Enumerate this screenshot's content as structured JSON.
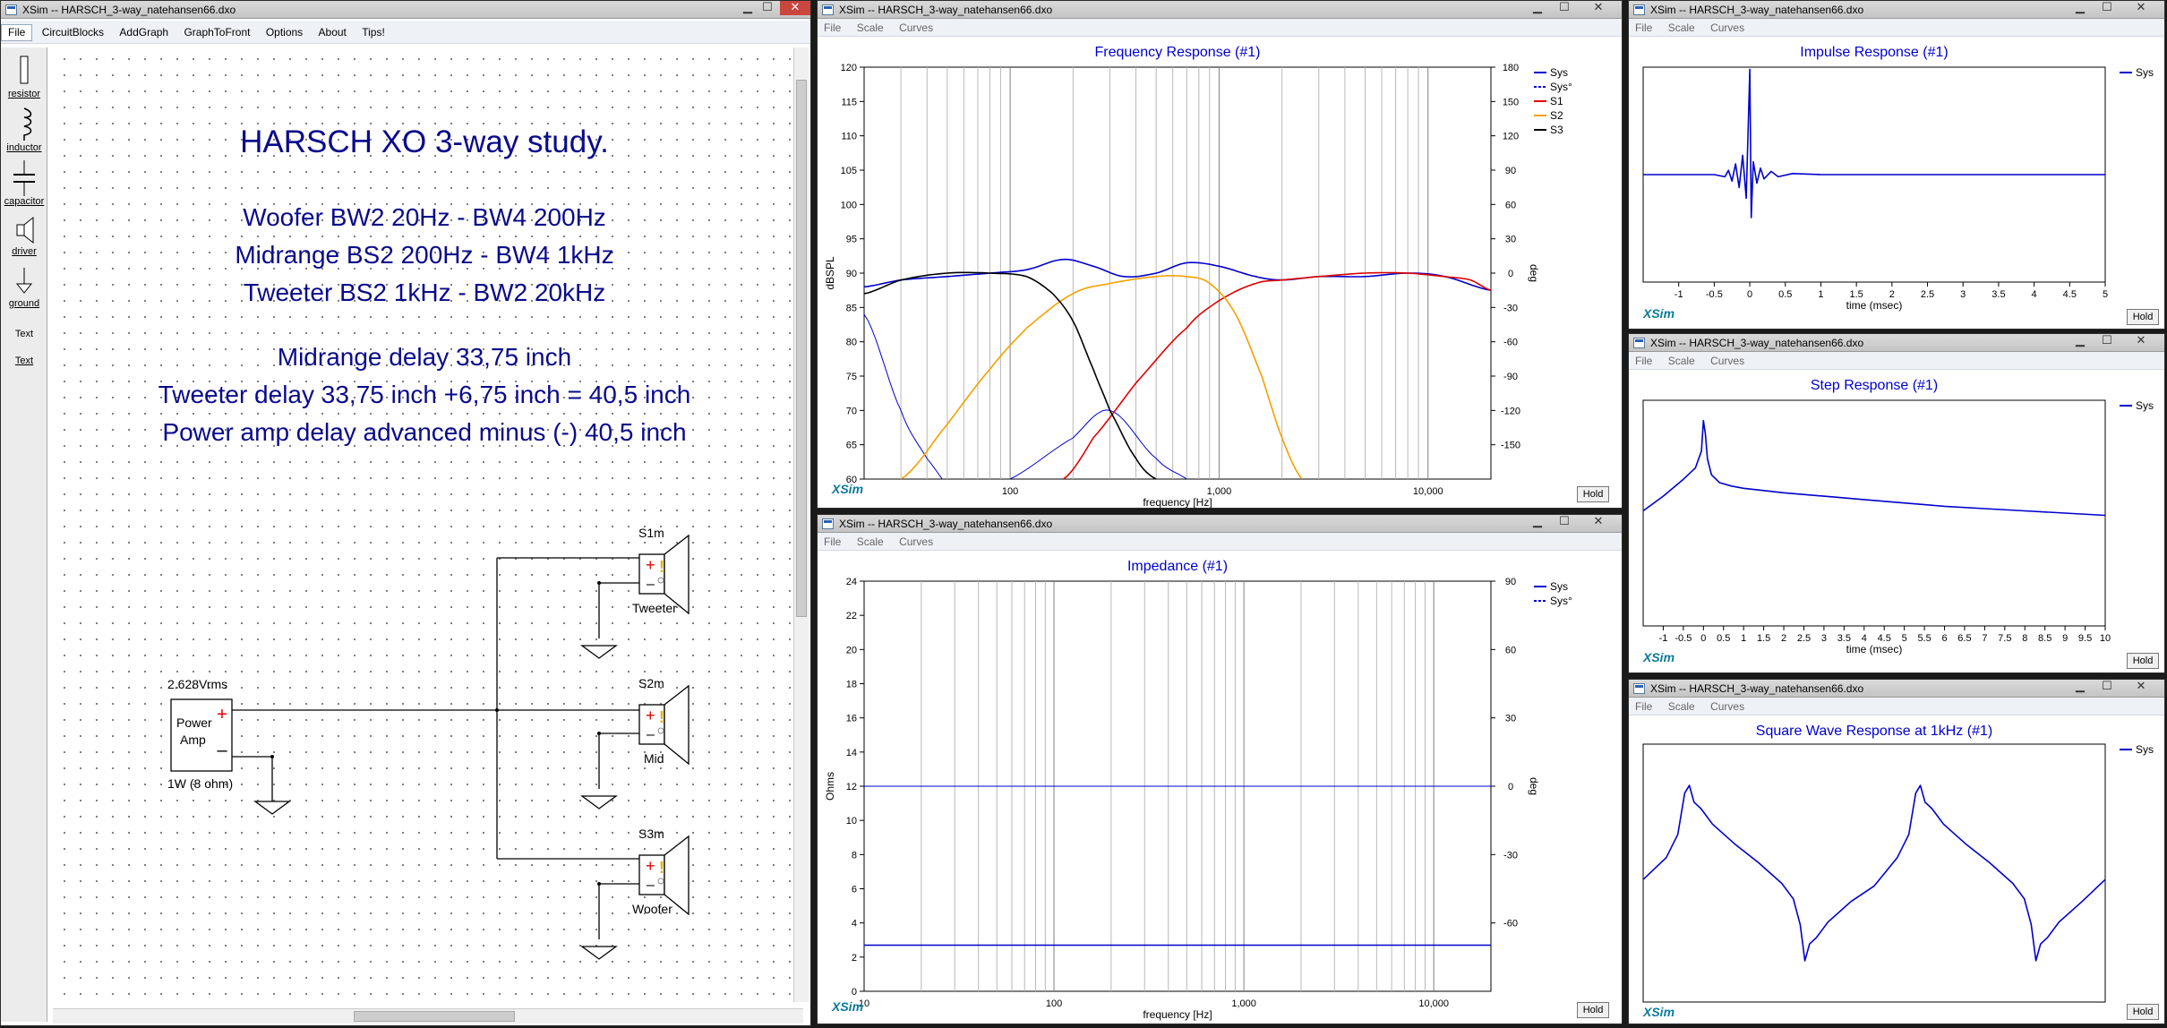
{
  "main_window": {
    "title": "XSim -- HARSCH_3-way_natehansen66.dxo",
    "menu": [
      "File",
      "CircuitBlocks",
      "AddGraph",
      "GraphToFront",
      "Options",
      "About",
      "Tips!"
    ],
    "palette": [
      "resistor",
      "inductor",
      "capacitor",
      "driver",
      "ground",
      "Text",
      "Text"
    ],
    "canvas_text": {
      "heading": "HARSCH XO 3-way study.",
      "lines1": [
        "Woofer BW2 20Hz - BW4 200Hz",
        "Midrange BS2 200Hz - BW4 1kHz",
        "Tweeter BS2 1kHz - BW2 20kHz"
      ],
      "lines2": [
        "Midrange delay 33,75 inch",
        "Tweeter delay 33,75 inch +6,75 inch = 40,5 inch",
        "Power amp delay advanced minus (-) 40,5 inch"
      ]
    },
    "circuit": {
      "amp_voltage": "2.628Vrms",
      "amp_label1": "Power",
      "amp_label2": "Amp",
      "amp_rating": "1W (8 ohm)",
      "drivers": [
        {
          "id": "S1m",
          "label": "Tweeter"
        },
        {
          "id": "S2m",
          "label": "Mid"
        },
        {
          "id": "S3m",
          "label": "Woofer"
        }
      ]
    }
  },
  "graph_menu": [
    "File",
    "Scale",
    "Curves"
  ],
  "win_controls": {
    "min": "▁",
    "max": "☐",
    "close": "✕"
  },
  "brand": "XSim",
  "hold": "Hold",
  "graphs": {
    "freq": {
      "title": "XSim -- HARSCH_3-way_natehansen66.dxo",
      "chart_data": {
        "type": "line",
        "title": "Frequency Response (#1)",
        "xlabel": "frequency [Hz]",
        "ylabel": "dBSPL",
        "y2label": "deg",
        "xscale": "log",
        "xlim": [
          20,
          20000
        ],
        "ylim": [
          60,
          120
        ],
        "y2lim": [
          -180,
          180
        ],
        "xticks": [
          "100",
          "1,000",
          "10,000"
        ],
        "yticks": [
          "120",
          "115",
          "110",
          "105",
          "100",
          "95",
          "90",
          "85",
          "80",
          "75",
          "70",
          "65",
          "60"
        ],
        "y2ticks": [
          "180",
          "150",
          "120",
          "90",
          "60",
          "30",
          "0",
          "-30",
          "-60",
          "-90",
          "-120",
          "-150"
        ],
        "legend_position": "right",
        "series": [
          {
            "name": "Sys",
            "color": "#0000cc",
            "x": [
              20,
              30,
              50,
              80,
              120,
              180,
              250,
              350,
              500,
              700,
              1000,
              1500,
              2000,
              3000,
              5000,
              8000,
              12000,
              20000
            ],
            "y": [
              88,
              89,
              89.5,
              90,
              90.5,
              92,
              91,
              89.5,
              90,
              91.5,
              91,
              89.5,
              89,
              89.5,
              89.5,
              90,
              89.5,
              87.5
            ]
          },
          {
            "name": "Sys°",
            "color": "#0000cc",
            "dashed": true,
            "x": [
              20,
              30,
              40,
              60,
              100,
              200,
              300,
              500,
              700,
              1000,
              1500,
              2000,
              3000,
              5000,
              8000,
              12000,
              20000
            ],
            "y": [
              84,
              70,
              63,
              57,
              60,
              66,
              70,
              63,
              60,
              57,
              54,
              48,
              36,
              24,
              18,
              12,
              3
            ]
          },
          {
            "name": "S1",
            "color": "#dd0000",
            "x": [
              180,
              250,
              400,
              700,
              1000,
              1500,
              2000,
              3000,
              5000,
              8000,
              12000,
              16000,
              20000
            ],
            "y": [
              60,
              66,
              74,
              82,
              86,
              88.5,
              89,
              89.5,
              90,
              90,
              89.5,
              89,
              87.5
            ]
          },
          {
            "name": "S2",
            "color": "#f5a000",
            "x": [
              30,
              50,
              80,
              120,
              200,
              300,
              500,
              700,
              900,
              1200,
              1600,
              2000,
              2500
            ],
            "y": [
              60,
              68,
              76,
              82,
              87,
              88.5,
              89.5,
              89.5,
              88.5,
              84,
              75,
              66,
              60
            ]
          },
          {
            "name": "S3",
            "color": "#000000",
            "x": [
              20,
              30,
              50,
              80,
              120,
              160,
              200,
              250,
              300,
              400,
              500
            ],
            "y": [
              87,
              89,
              90,
              90,
              89.5,
              87,
              83,
              76,
              70,
              63,
              60
            ]
          }
        ]
      }
    },
    "imp": {
      "title": "XSim -- HARSCH_3-way_natehansen66.dxo",
      "chart_data": {
        "type": "line",
        "title": "Impedance (#1)",
        "xlabel": "frequency [Hz]",
        "ylabel": "Ohms",
        "y2label": "deg",
        "xscale": "log",
        "xlim": [
          10,
          20000
        ],
        "ylim": [
          0,
          24
        ],
        "y2lim": [
          -90,
          90
        ],
        "xticks": [
          "10",
          "100",
          "1,000",
          "10,000"
        ],
        "yticks": [
          "24",
          "22",
          "20",
          "18",
          "16",
          "14",
          "12",
          "10",
          "8",
          "6",
          "4",
          "2",
          "0"
        ],
        "y2ticks": [
          "90",
          "60",
          "30",
          "0",
          "-30",
          "-60"
        ],
        "legend_position": "right",
        "series": [
          {
            "name": "Sys",
            "color": "#0000cc",
            "x": [
              10,
              20000
            ],
            "y": [
              2.7,
              2.7
            ]
          },
          {
            "name": "Sys°",
            "color": "#0000cc",
            "dashed": true,
            "x": [
              10,
              20000
            ],
            "y": [
              12,
              12
            ]
          }
        ]
      }
    },
    "impulse": {
      "title": "XSim -- HARSCH_3-way_natehansen66.dxo",
      "chart_data": {
        "type": "line",
        "title": "Impulse Response (#1)",
        "xlabel": "time (msec)",
        "xlim": [
          -1.5,
          5
        ],
        "ylim": [
          -1,
          1
        ],
        "xticks": [
          "-1",
          "-0.5",
          "0",
          "0.5",
          "1",
          "1.5",
          "2",
          "2.5",
          "3",
          "3.5",
          "4",
          "4.5",
          "5"
        ],
        "legend_position": "right",
        "series": [
          {
            "name": "Sys",
            "color": "#0000cc",
            "x": [
              -1.5,
              -0.5,
              -0.35,
              -0.3,
              -0.25,
              -0.2,
              -0.15,
              -0.1,
              -0.05,
              0,
              0.02,
              0.05,
              0.1,
              0.15,
              0.2,
              0.3,
              0.4,
              0.6,
              1,
              5
            ],
            "y": [
              0,
              0,
              -0.02,
              0.04,
              -0.06,
              0.1,
              -0.12,
              0.18,
              -0.22,
              0.98,
              -0.4,
              0.12,
              -0.08,
              0.06,
              -0.04,
              0.03,
              -0.02,
              0.01,
              0,
              0
            ]
          }
        ]
      }
    },
    "step": {
      "title": "XSim -- HARSCH_3-way_natehansen66.dxo",
      "chart_data": {
        "type": "line",
        "title": "Step Response (#1)",
        "xlabel": "time (msec)",
        "xlim": [
          -1.5,
          10
        ],
        "ylim": [
          -1,
          1
        ],
        "xticks": [
          "-1",
          "-0.5",
          "0",
          "0.5",
          "1",
          "1.5",
          "2",
          "2.5",
          "3",
          "3.5",
          "4",
          "4.5",
          "5",
          "5.5",
          "6",
          "6.5",
          "7",
          "7.5",
          "8",
          "8.5",
          "9",
          "9.5",
          "10"
        ],
        "legend_position": "right",
        "series": [
          {
            "name": "Sys",
            "color": "#0000cc",
            "x": [
              -1.5,
              -1,
              -0.5,
              -0.2,
              -0.05,
              0,
              0.05,
              0.1,
              0.2,
              0.4,
              0.7,
              1,
              1.5,
              2,
              3,
              4,
              5,
              6,
              7,
              8,
              9,
              10
            ],
            "y": [
              0.02,
              0.15,
              0.3,
              0.4,
              0.55,
              0.82,
              0.7,
              0.48,
              0.34,
              0.27,
              0.24,
              0.22,
              0.2,
              0.18,
              0.15,
              0.12,
              0.09,
              0.06,
              0.04,
              0.02,
              0.0,
              -0.02
            ]
          }
        ]
      }
    },
    "square": {
      "title": "XSim -- HARSCH_3-way_natehansen66.dxo",
      "chart_data": {
        "type": "line",
        "title": "Square Wave Response at 1kHz (#1)",
        "xlim": [
          0,
          2
        ],
        "ylim": [
          -1,
          1
        ],
        "legend_position": "right",
        "series": [
          {
            "name": "Sys",
            "color": "#0000cc",
            "x": [
              0,
              0.1,
              0.15,
              0.18,
              0.2,
              0.22,
              0.25,
              0.3,
              0.4,
              0.5,
              0.6,
              0.65,
              0.68,
              0.7,
              0.72,
              0.75,
              0.8,
              0.9,
              1.0,
              1.1,
              1.15,
              1.18,
              1.2,
              1.22,
              1.25,
              1.3,
              1.4,
              1.5,
              1.6,
              1.65,
              1.68,
              1.7,
              1.72,
              1.75,
              1.8,
              1.9,
              2.0
            ],
            "y": [
              -0.05,
              0.12,
              0.3,
              0.62,
              0.68,
              0.55,
              0.5,
              0.38,
              0.22,
              0.08,
              -0.08,
              -0.2,
              -0.4,
              -0.68,
              -0.55,
              -0.5,
              -0.38,
              -0.22,
              -0.1,
              0.12,
              0.3,
              0.62,
              0.68,
              0.55,
              0.5,
              0.38,
              0.22,
              0.08,
              -0.08,
              -0.2,
              -0.4,
              -0.68,
              -0.55,
              -0.5,
              -0.38,
              -0.22,
              -0.05
            ]
          }
        ]
      }
    }
  }
}
